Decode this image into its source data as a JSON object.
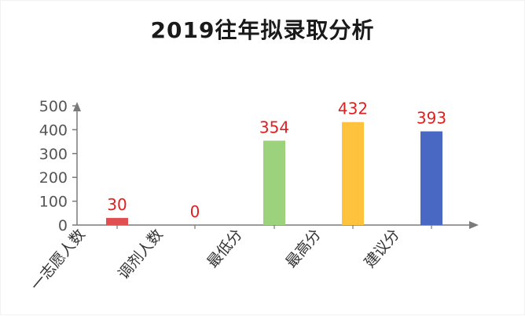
{
  "chart_data": {
    "type": "bar",
    "title": "2019往年拟录取分析",
    "categories": [
      "一志愿人数",
      "调剂人数",
      "最低分",
      "最高分",
      "建议分"
    ],
    "values": [
      30,
      0,
      354,
      432,
      393
    ],
    "colors": [
      "#e05050",
      "#e05050",
      "#9dd27c",
      "#ffc23d",
      "#4868c4"
    ],
    "data_label_color": "#e02020",
    "axis_color": "#7a7a7a",
    "ylim": [
      0,
      500
    ],
    "yticks": [
      0,
      100,
      200,
      300,
      400,
      500
    ],
    "grid": false,
    "legend": "none"
  }
}
